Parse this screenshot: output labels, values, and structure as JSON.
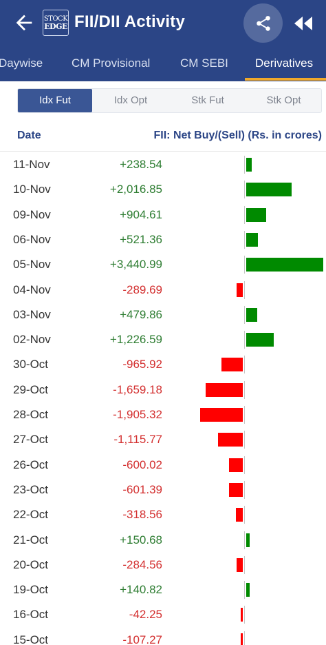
{
  "header": {
    "title": "FII/DII Activity",
    "logo_line1": "STOCK",
    "logo_line2": "EDGE",
    "back_icon": "arrow-left-icon",
    "share_icon": "share-icon",
    "rewind_icon": "rewind-icon"
  },
  "tabs": [
    {
      "label": "Daywise",
      "active": false
    },
    {
      "label": "CM Provisional",
      "active": false
    },
    {
      "label": "CM SEBI",
      "active": false
    },
    {
      "label": "Derivatives",
      "active": true
    }
  ],
  "segments": [
    {
      "label": "Idx Fut",
      "active": true
    },
    {
      "label": "Idx Opt",
      "active": false
    },
    {
      "label": "Stk Fut",
      "active": false
    },
    {
      "label": "Stk Opt",
      "active": false
    }
  ],
  "table": {
    "col_date": "Date",
    "col_fii": "FII: Net Buy/(Sell) (Rs. in crores)",
    "rows": [
      {
        "date": "11-Nov",
        "value_text": "+238.54",
        "value": 238.54
      },
      {
        "date": "10-Nov",
        "value_text": "+2,016.85",
        "value": 2016.85
      },
      {
        "date": "09-Nov",
        "value_text": "+904.61",
        "value": 904.61
      },
      {
        "date": "06-Nov",
        "value_text": "+521.36",
        "value": 521.36
      },
      {
        "date": "05-Nov",
        "value_text": "+3,440.99",
        "value": 3440.99
      },
      {
        "date": "04-Nov",
        "value_text": "-289.69",
        "value": -289.69
      },
      {
        "date": "03-Nov",
        "value_text": "+479.86",
        "value": 479.86
      },
      {
        "date": "02-Nov",
        "value_text": "+1,226.59",
        "value": 1226.59
      },
      {
        "date": "30-Oct",
        "value_text": "-965.92",
        "value": -965.92
      },
      {
        "date": "29-Oct",
        "value_text": "-1,659.18",
        "value": -1659.18
      },
      {
        "date": "28-Oct",
        "value_text": "-1,905.32",
        "value": -1905.32
      },
      {
        "date": "27-Oct",
        "value_text": "-1,115.77",
        "value": -1115.77
      },
      {
        "date": "26-Oct",
        "value_text": "-600.02",
        "value": -600.02
      },
      {
        "date": "23-Oct",
        "value_text": "-601.39",
        "value": -601.39
      },
      {
        "date": "22-Oct",
        "value_text": "-318.56",
        "value": -318.56
      },
      {
        "date": "21-Oct",
        "value_text": "+150.68",
        "value": 150.68
      },
      {
        "date": "20-Oct",
        "value_text": "-284.56",
        "value": -284.56
      },
      {
        "date": "19-Oct",
        "value_text": "+140.82",
        "value": 140.82
      },
      {
        "date": "16-Oct",
        "value_text": "-42.25",
        "value": -42.25
      },
      {
        "date": "15-Oct",
        "value_text": "-107.27",
        "value": -107.27
      }
    ]
  },
  "colors": {
    "appbar": "#2b4586",
    "indicator": "#f0a92b",
    "positive_bar": "#008a00",
    "negative_bar": "#ff0000",
    "positive_text": "#2e7d32",
    "negative_text": "#d32f2f"
  }
}
